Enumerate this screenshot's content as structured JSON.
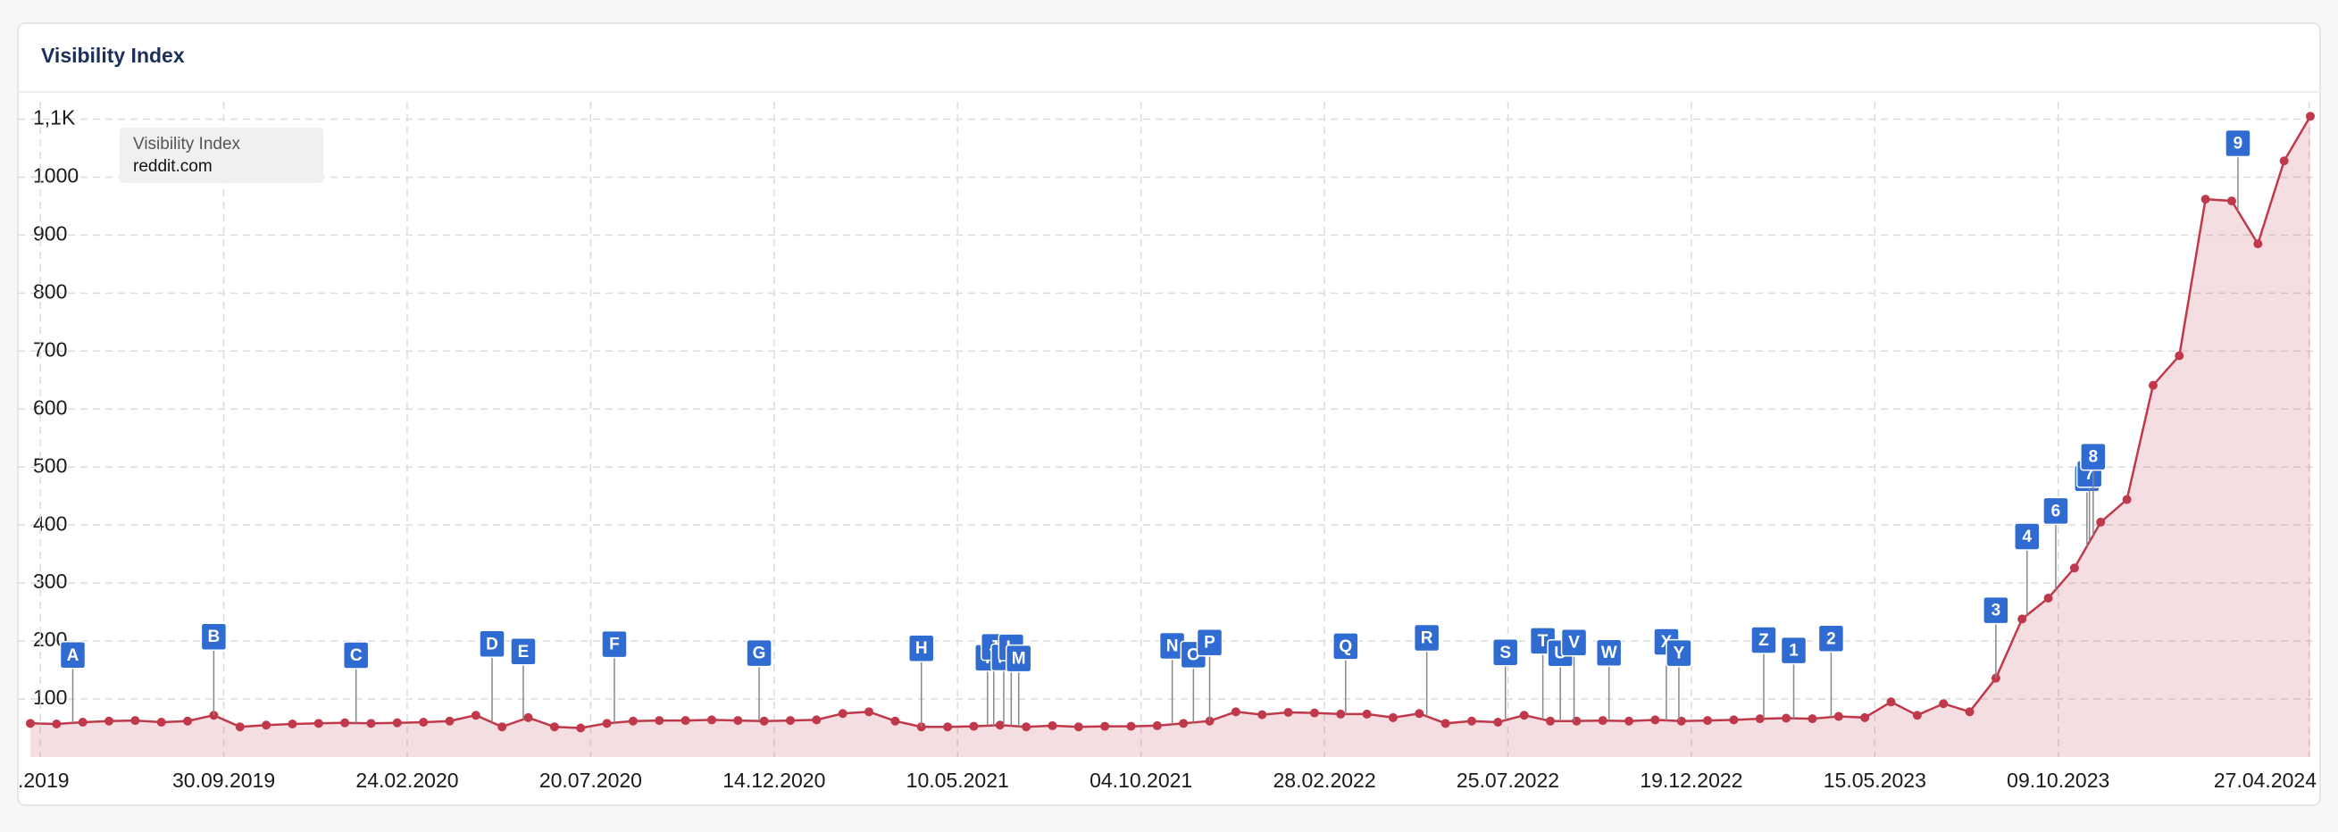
{
  "chart_data": {
    "type": "area",
    "title": "Visibility Index",
    "legend_title": "Visibility Index",
    "x": [
      "28.04.2019",
      "19.05.2019",
      "09.06.2019",
      "30.06.2019",
      "21.07.2019",
      "11.08.2019",
      "01.09.2019",
      "22.09.2019",
      "13.10.2019",
      "03.11.2019",
      "24.11.2019",
      "15.12.2019",
      "05.01.2020",
      "26.01.2020",
      "16.02.2020",
      "08.03.2020",
      "29.03.2020",
      "19.04.2020",
      "10.05.2020",
      "31.05.2020",
      "21.06.2020",
      "12.07.2020",
      "02.08.2020",
      "23.08.2020",
      "13.09.2020",
      "04.10.2020",
      "25.10.2020",
      "15.11.2020",
      "06.12.2020",
      "27.12.2020",
      "17.01.2021",
      "07.02.2021",
      "28.02.2021",
      "21.03.2021",
      "11.04.2021",
      "02.05.2021",
      "23.05.2021",
      "13.06.2021",
      "04.07.2021",
      "25.07.2021",
      "15.08.2021",
      "05.09.2021",
      "26.09.2021",
      "17.10.2021",
      "07.11.2021",
      "28.11.2021",
      "19.12.2021",
      "09.01.2022",
      "30.01.2022",
      "20.02.2022",
      "13.03.2022",
      "03.04.2022",
      "24.04.2022",
      "15.05.2022",
      "05.06.2022",
      "26.06.2022",
      "17.07.2022",
      "07.08.2022",
      "28.08.2022",
      "18.09.2022",
      "09.10.2022",
      "30.10.2022",
      "20.11.2022",
      "11.12.2022",
      "01.01.2023",
      "22.01.2023",
      "12.02.2023",
      "05.03.2023",
      "26.03.2023",
      "16.04.2023",
      "07.05.2023",
      "28.05.2023",
      "18.06.2023",
      "09.07.2023",
      "30.07.2023",
      "20.08.2023",
      "10.09.2023",
      "01.10.2023",
      "22.10.2023",
      "12.11.2023",
      "03.12.2023",
      "24.12.2023",
      "14.01.2024",
      "04.02.2024",
      "25.02.2024",
      "17.03.2024",
      "07.04.2024",
      "28.04.2024"
    ],
    "series": [
      {
        "name": "reddit.com",
        "color": "#c0394b",
        "fill_color": "rgba(192,57,75,0.17)",
        "values": [
          58,
          57,
          60,
          62,
          63,
          60,
          62,
          72,
          52,
          55,
          57,
          58,
          59,
          58,
          59,
          60,
          62,
          72,
          52,
          68,
          52,
          50,
          58,
          62,
          63,
          63,
          64,
          63,
          62,
          63,
          64,
          75,
          78,
          62,
          52,
          52,
          53,
          55,
          52,
          54,
          52,
          53,
          53,
          54,
          58,
          62,
          78,
          73,
          77,
          76,
          74,
          74,
          68,
          75,
          58,
          62,
          60,
          72,
          62,
          62,
          63,
          62,
          64,
          62,
          63,
          64,
          66,
          67,
          66,
          70,
          68,
          95,
          72,
          92,
          78,
          136,
          238,
          274,
          326,
          405,
          444,
          641,
          692,
          962,
          959,
          885,
          1028,
          1105
        ]
      }
    ],
    "xlim": [
      "18.04.2019",
      "03.05.2024"
    ],
    "xticks": [
      {
        "value": "06.05.2019",
        "label": ".2019"
      },
      "30.09.2019",
      "24.02.2020",
      "20.07.2020",
      "14.12.2020",
      "10.05.2021",
      "04.10.2021",
      "28.02.2022",
      "25.07.2022",
      "19.12.2022",
      "15.05.2023",
      "09.10.2023",
      "27.04.2024"
    ],
    "ylim": [
      0,
      1130
    ],
    "yticks": [
      100,
      200,
      300,
      400,
      500,
      600,
      700,
      800,
      900,
      1000,
      {
        "value": 1100,
        "label": "1,1K"
      }
    ],
    "grid": true,
    "annotation_color": "#2f6bd1",
    "annotations": [
      {
        "label": "A",
        "x": "01.06.2019"
      },
      {
        "label": "B",
        "x": "22.09.2019"
      },
      {
        "label": "C",
        "x": "14.01.2020"
      },
      {
        "label": "D",
        "x": "02.05.2020"
      },
      {
        "label": "E",
        "x": "27.05.2020"
      },
      {
        "label": "F",
        "x": "08.08.2020"
      },
      {
        "label": "G",
        "x": "02.12.2020"
      },
      {
        "label": "H",
        "x": "11.04.2021"
      },
      {
        "label": "I",
        "x": "03.06.2021"
      },
      {
        "label": "J",
        "x": "08.06.2021"
      },
      {
        "label": "K",
        "x": "16.06.2021"
      },
      {
        "label": "L",
        "x": "22.06.2021"
      },
      {
        "label": "M",
        "x": "28.06.2021"
      },
      {
        "label": "N",
        "x": "29.10.2021"
      },
      {
        "label": "O",
        "x": "15.11.2021"
      },
      {
        "label": "P",
        "x": "28.11.2021"
      },
      {
        "label": "Q",
        "x": "17.03.2022"
      },
      {
        "label": "R",
        "x": "21.05.2022"
      },
      {
        "label": "S",
        "x": "23.07.2022"
      },
      {
        "label": "T",
        "x": "22.08.2022"
      },
      {
        "label": "U",
        "x": "05.09.2022"
      },
      {
        "label": "V",
        "x": "16.09.2022"
      },
      {
        "label": "W",
        "x": "14.10.2022"
      },
      {
        "label": "X",
        "x": "29.11.2022"
      },
      {
        "label": "Y",
        "x": "09.12.2022"
      },
      {
        "label": "Z",
        "x": "15.02.2023"
      },
      {
        "label": "1",
        "x": "11.03.2023"
      },
      {
        "label": "2",
        "x": "10.04.2023"
      },
      {
        "label": "3",
        "x": "20.08.2023"
      },
      {
        "label": "4",
        "x": "14.09.2023"
      },
      {
        "label": "5",
        "x": "01.11.2023"
      },
      {
        "label": "6",
        "x": "07.10.2023"
      },
      {
        "label": "7",
        "x": "03.11.2023"
      },
      {
        "label": "8",
        "x": "06.11.2023"
      },
      {
        "label": "9",
        "x": "01.03.2024"
      }
    ]
  }
}
